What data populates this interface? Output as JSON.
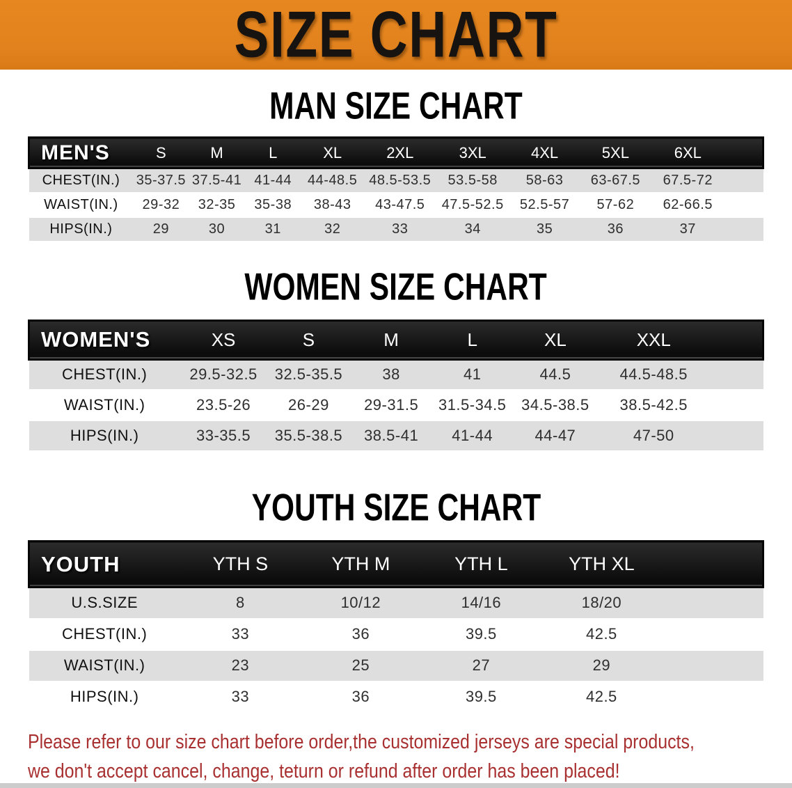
{
  "banner": {
    "title": "SIZE CHART"
  },
  "colors": {
    "banner_bg": "#E2821E",
    "header_bar": "#111111",
    "row_stripe": "#DEDEDE",
    "disclaimer_text": "#A93030"
  },
  "sections": [
    {
      "heading": "MAN SIZE CHART",
      "table": {
        "label": "MEN'S",
        "columns": [
          "S",
          "M",
          "L",
          "XL",
          "2XL",
          "3XL",
          "4XL",
          "5XL",
          "6XL"
        ],
        "rows": [
          {
            "label": "CHEST(IN.)",
            "values": [
              "35-37.5",
              "37.5-41",
              "41-44",
              "44-48.5",
              "48.5-53.5",
              "53.5-58",
              "58-63",
              "63-67.5",
              "67.5-72"
            ]
          },
          {
            "label": "WAIST(IN.)",
            "values": [
              "29-32",
              "32-35",
              "35-38",
              "38-43",
              "43-47.5",
              "47.5-52.5",
              "52.5-57",
              "57-62",
              "62-66.5"
            ]
          },
          {
            "label": "HIPS(IN.)",
            "values": [
              "29",
              "30",
              "31",
              "32",
              "33",
              "34",
              "35",
              "36",
              "37"
            ]
          }
        ]
      }
    },
    {
      "heading": "WOMEN SIZE CHART",
      "table": {
        "label": "WOMEN'S",
        "columns": [
          "XS",
          "S",
          "M",
          "L",
          "XL",
          "XXL"
        ],
        "rows": [
          {
            "label": "CHEST(IN.)",
            "values": [
              "29.5-32.5",
              "32.5-35.5",
              "38",
              "41",
              "44.5",
              "44.5-48.5"
            ]
          },
          {
            "label": "WAIST(IN.)",
            "values": [
              "23.5-26",
              "26-29",
              "29-31.5",
              "31.5-34.5",
              "34.5-38.5",
              "38.5-42.5"
            ]
          },
          {
            "label": "HIPS(IN.)",
            "values": [
              "33-35.5",
              "35.5-38.5",
              "38.5-41",
              "41-44",
              "44-47",
              "47-50"
            ]
          }
        ]
      }
    },
    {
      "heading": "YOUTH SIZE CHART",
      "table": {
        "label": "YOUTH",
        "columns": [
          "YTH S",
          "YTH M",
          "YTH L",
          "YTH XL"
        ],
        "rows": [
          {
            "label": "U.S.SIZE",
            "values": [
              "8",
              "10/12",
              "14/16",
              "18/20"
            ]
          },
          {
            "label": "CHEST(IN.)",
            "values": [
              "33",
              "36",
              "39.5",
              "42.5"
            ]
          },
          {
            "label": "WAIST(IN.)",
            "values": [
              "23",
              "25",
              "27",
              "29"
            ]
          },
          {
            "label": "HIPS(IN.)",
            "values": [
              "33",
              "36",
              "39.5",
              "42.5"
            ]
          }
        ]
      }
    }
  ],
  "disclaimer": {
    "line1": "Please refer to our size chart before order,the customized jerseys are special products,",
    "line2": "we don't accept cancel, change, teturn or refund after order has been placed!"
  }
}
